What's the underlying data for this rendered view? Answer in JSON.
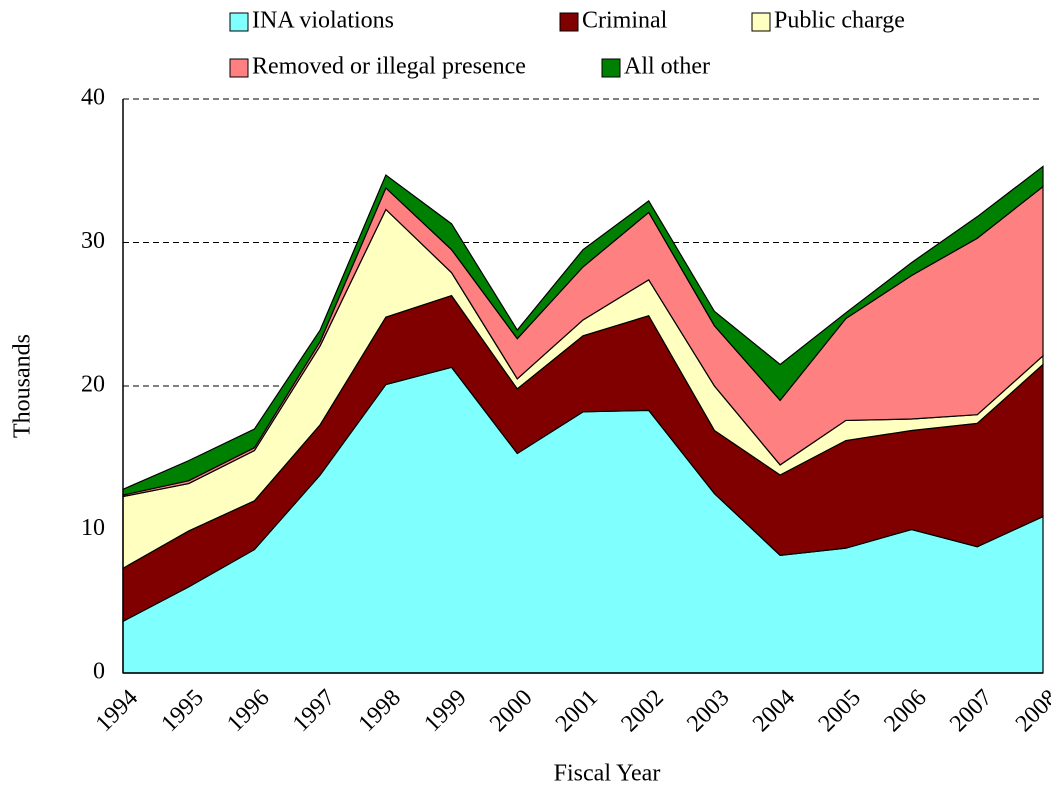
{
  "chart_data": {
    "type": "stacked_area",
    "x_label": "Fiscal Year",
    "y_label": "Thousands",
    "categories": [
      "1994",
      "1995",
      "1996",
      "1997",
      "1998",
      "1999",
      "2000",
      "2001",
      "2002",
      "2003",
      "2004",
      "2005",
      "2006",
      "2007",
      "2008"
    ],
    "series": [
      {
        "name": "INA violations",
        "color": "#80ffff",
        "values": [
          3.6,
          6.0,
          8.6,
          13.8,
          20.1,
          21.3,
          15.3,
          18.2,
          18.3,
          12.5,
          8.2,
          8.7,
          10.0,
          8.8,
          10.9
        ]
      },
      {
        "name": "Criminal",
        "color": "#800000",
        "values": [
          3.7,
          3.9,
          3.4,
          3.5,
          4.7,
          5.0,
          4.5,
          5.3,
          6.6,
          4.4,
          5.6,
          7.5,
          6.9,
          8.6,
          10.6
        ]
      },
      {
        "name": "Public charge",
        "color": "#ffffc0",
        "values": [
          5.0,
          3.3,
          3.5,
          5.5,
          7.5,
          1.6,
          0.7,
          1.1,
          2.5,
          3.1,
          0.7,
          1.4,
          0.8,
          0.6,
          0.6
        ]
      },
      {
        "name": "Removed or illegal presence",
        "color": "#ff8080",
        "values": [
          0.1,
          0.2,
          0.2,
          0.3,
          1.5,
          1.6,
          2.8,
          3.7,
          4.7,
          4.2,
          4.5,
          7.1,
          10.0,
          12.3,
          11.8
        ]
      },
      {
        "name": "All other",
        "color": "#008000",
        "values": [
          0.4,
          1.4,
          1.3,
          0.8,
          0.9,
          1.8,
          0.6,
          1.2,
          0.8,
          1.0,
          2.5,
          0.4,
          0.9,
          1.5,
          1.4
        ]
      }
    ],
    "ylim": [
      0,
      40
    ],
    "yticks": [
      0,
      10,
      20,
      30,
      40
    ],
    "grid": true,
    "legend": "top"
  }
}
